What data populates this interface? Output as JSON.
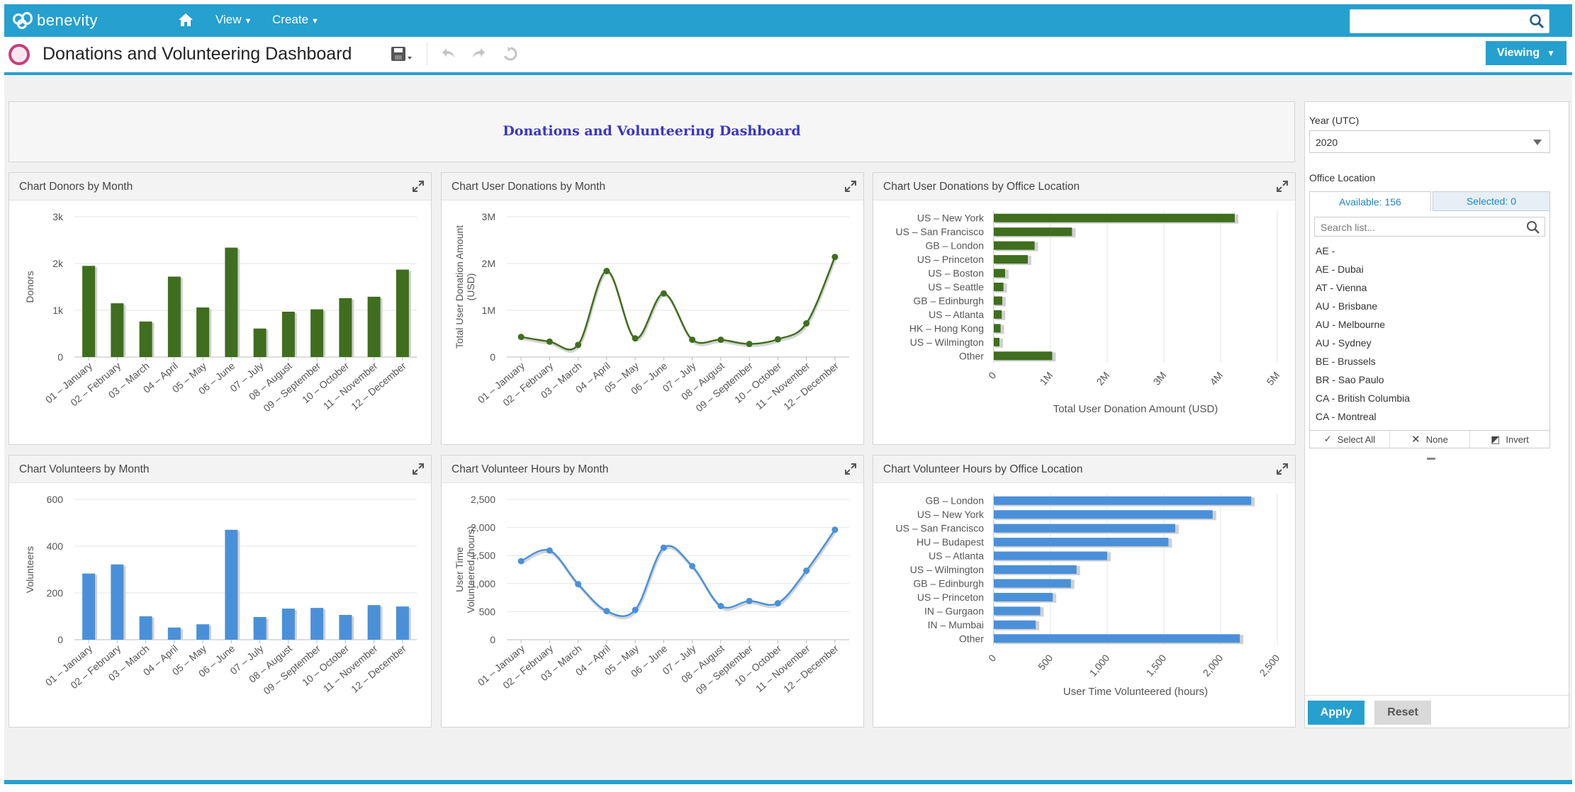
{
  "app": {
    "brand": "benevity"
  },
  "nav": {
    "view_label": "View",
    "create_label": "Create"
  },
  "search": {
    "placeholder": ""
  },
  "titlebar": {
    "title": "Donations and Volunteering Dashboard",
    "viewing_label": "Viewing"
  },
  "dashboard": {
    "heading": "Donations and Volunteering Dashboard"
  },
  "colors": {
    "accent": "#26a0cf",
    "green_bar": "#3f6e1e",
    "blue_bar": "#4a90d9",
    "heading": "#3a36c4"
  },
  "panels": [
    {
      "title": "Chart Donors by Month"
    },
    {
      "title": "Chart User Donations by Month"
    },
    {
      "title": "Chart User Donations by Office Location"
    },
    {
      "title": "Chart Volunteers by Month"
    },
    {
      "title": "Chart Volunteer Hours by Month"
    },
    {
      "title": "Chart Volunteer Hours by Office Location"
    }
  ],
  "chart_data": [
    {
      "type": "bar",
      "title": "Chart Donors by Month",
      "xlabel": "",
      "ylabel": "Donors",
      "ylim": [
        0,
        3000
      ],
      "yticks": [
        "0",
        "1k",
        "2k",
        "3k"
      ],
      "categories": [
        "01 – January",
        "02 – February",
        "03 – March",
        "04 – April",
        "05 – May",
        "06 – June",
        "07 – July",
        "08 – August",
        "09 – September",
        "10 – October",
        "11 – November",
        "12 – December"
      ],
      "values": [
        1950,
        1150,
        760,
        1720,
        1060,
        2340,
        610,
        970,
        1020,
        1260,
        1290,
        1870
      ],
      "color": "#3f6e1e"
    },
    {
      "type": "line",
      "title": "Chart User Donations by Month",
      "xlabel": "",
      "ylabel": "Total User Donation Amount (USD)",
      "ylim": [
        0,
        3000000
      ],
      "yticks": [
        "0",
        "1M",
        "2M",
        "3M"
      ],
      "categories": [
        "01 – January",
        "02 – February",
        "03 – March",
        "04 – April",
        "05 – May",
        "06 – June",
        "07 – July",
        "08 – August",
        "09 – September",
        "10 – October",
        "11 – November",
        "12 – December"
      ],
      "values": [
        430000,
        330000,
        260000,
        1840000,
        400000,
        1360000,
        370000,
        370000,
        280000,
        380000,
        720000,
        2140000
      ],
      "color": "#3f6e1e"
    },
    {
      "type": "bar",
      "orientation": "horizontal",
      "title": "Chart User Donations by Office Location",
      "xlabel": "Total User Donation Amount (USD)",
      "ylabel": "",
      "xlim": [
        0,
        5000000
      ],
      "xticks": [
        "0",
        "1M",
        "2M",
        "3M",
        "4M",
        "5M"
      ],
      "categories": [
        "US – New York",
        "US – San Francisco",
        "GB – London",
        "US – Princeton",
        "US – Boston",
        "US – Seattle",
        "GB – Edinburgh",
        "US – Atlanta",
        "HK – Hong Kong",
        "US – Wilmington",
        "Other"
      ],
      "values": [
        4250000,
        1380000,
        720000,
        600000,
        200000,
        170000,
        150000,
        140000,
        120000,
        100000,
        1030000
      ],
      "color": "#3f6e1e"
    },
    {
      "type": "bar",
      "title": "Chart Volunteers by Month",
      "xlabel": "",
      "ylabel": "Volunteers",
      "ylim": [
        0,
        600
      ],
      "yticks": [
        "0",
        "200",
        "400",
        "600"
      ],
      "categories": [
        "01 – January",
        "02 – February",
        "03 – March",
        "04 – April",
        "05 – May",
        "06 – June",
        "07 – July",
        "08 – August",
        "09 – September",
        "10 – October",
        "11 – November",
        "12 – December"
      ],
      "values": [
        283,
        322,
        100,
        52,
        66,
        470,
        97,
        133,
        136,
        106,
        148,
        142
      ],
      "color": "#4a90d9"
    },
    {
      "type": "line",
      "title": "Chart Volunteer Hours by Month",
      "xlabel": "",
      "ylabel": "User Time Volunteered (hours)",
      "ylim": [
        0,
        2500
      ],
      "yticks": [
        "0",
        "500",
        "1,000",
        "1,500",
        "2,000",
        "2,500"
      ],
      "categories": [
        "01 – January",
        "02 – February",
        "03 – March",
        "04 – April",
        "05 – May",
        "06 – June",
        "07 – July",
        "08 – August",
        "09 – September",
        "10 – October",
        "11 – November",
        "12 – December"
      ],
      "values": [
        1400,
        1590,
        990,
        510,
        530,
        1640,
        1310,
        600,
        690,
        650,
        1230,
        1960
      ],
      "color": "#4a90d9"
    },
    {
      "type": "bar",
      "orientation": "horizontal",
      "title": "Chart Volunteer Hours by Office Location",
      "xlabel": "User Time Volunteered (hours)",
      "ylabel": "",
      "xlim": [
        0,
        2500
      ],
      "xticks": [
        "0",
        "500",
        "1,000",
        "1,500",
        "2,000",
        "2,500"
      ],
      "categories": [
        "GB – London",
        "US – New York",
        "US – San Francisco",
        "HU – Budapest",
        "US – Atlanta",
        "US – Wilmington",
        "GB – Edinburgh",
        "US – Princeton",
        "IN – Gurgaon",
        "IN – Mumbai",
        "Other"
      ],
      "values": [
        2270,
        1930,
        1600,
        1540,
        1000,
        730,
        680,
        520,
        410,
        370,
        2170
      ],
      "color": "#4a90d9"
    }
  ],
  "filters": {
    "year_label": "Year (UTC)",
    "year_value": "2020",
    "office_label": "Office Location",
    "tab_available": "Available: 156",
    "tab_selected": "Selected: 0",
    "search_placeholder": "Search list...",
    "items": [
      "AE -",
      "AE - Dubai",
      "AT - Vienna",
      "AU - Brisbane",
      "AU - Melbourne",
      "AU - Sydney",
      "BE - Brussels",
      "BR - Sao Paulo",
      "CA - British Columbia",
      "CA - Montreal"
    ],
    "select_all": "Select All",
    "none": "None",
    "invert": "Invert",
    "apply": "Apply",
    "reset": "Reset"
  }
}
